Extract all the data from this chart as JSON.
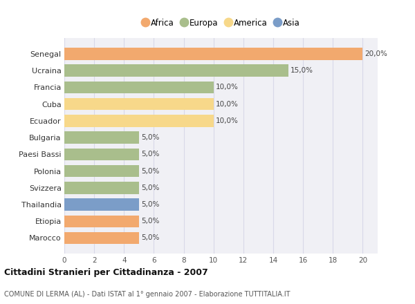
{
  "categories": [
    "Senegal",
    "Ucraina",
    "Francia",
    "Cuba",
    "Ecuador",
    "Bulgaria",
    "Paesi Bassi",
    "Polonia",
    "Svizzera",
    "Thailandia",
    "Etiopia",
    "Marocco"
  ],
  "values": [
    20.0,
    15.0,
    10.0,
    10.0,
    10.0,
    5.0,
    5.0,
    5.0,
    5.0,
    5.0,
    5.0,
    5.0
  ],
  "colors": [
    "#F2A96E",
    "#A9BE8C",
    "#A9BE8C",
    "#F7D88A",
    "#F7D88A",
    "#A9BE8C",
    "#A9BE8C",
    "#A9BE8C",
    "#A9BE8C",
    "#7B9DC8",
    "#F2A96E",
    "#F2A96E"
  ],
  "legend_labels": [
    "Africa",
    "Europa",
    "America",
    "Asia"
  ],
  "legend_colors": [
    "#F2A96E",
    "#A9BE8C",
    "#F7D88A",
    "#7B9DC8"
  ],
  "xlim": [
    0,
    21
  ],
  "xticks": [
    0,
    2,
    4,
    6,
    8,
    10,
    12,
    14,
    16,
    18,
    20
  ],
  "title": "Cittadini Stranieri per Cittadinanza - 2007",
  "subtitle": "COMUNE DI LERMA (AL) - Dati ISTAT al 1° gennaio 2007 - Elaborazione TUTTITALIA.IT",
  "bar_labels": [
    "20,0%",
    "15,0%",
    "10,0%",
    "10,0%",
    "10,0%",
    "5,0%",
    "5,0%",
    "5,0%",
    "5,0%",
    "5,0%",
    "5,0%",
    "5,0%"
  ],
  "background_color": "#ffffff",
  "plot_bg_color": "#f0f0f5",
  "grid_color": "#d8d8e8"
}
